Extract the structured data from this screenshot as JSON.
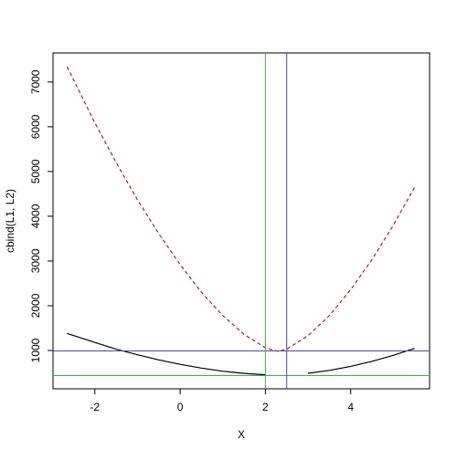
{
  "chart_data": {
    "type": "line",
    "xlabel": "X",
    "ylabel": "cbind(L1, L2)",
    "x": [
      -2.65,
      -2,
      -1.5,
      -1,
      -0.5,
      0,
      0.5,
      1,
      1.5,
      2,
      2.3,
      2.5,
      3,
      3.5,
      4,
      4.5,
      5,
      5.5
    ],
    "series": [
      {
        "color": "#000000",
        "dash": false,
        "values": [
          1380,
          1180,
          1030,
          905,
          790,
          690,
          606,
          537,
          487,
          457,
          null,
          null,
          490,
          555,
          644,
          757,
          891,
          1047
        ]
      },
      {
        "color": "#b22222",
        "dash": true,
        "values": [
          7340,
          6090,
          5200,
          4370,
          3610,
          2920,
          2300,
          1780,
          1360,
          1060,
          980,
          1030,
          1330,
          1780,
          2360,
          3030,
          3800,
          4650
        ]
      }
    ],
    "hlines": [
      {
        "value": 990,
        "color": "#4b4ba8"
      },
      {
        "value": 440,
        "color": "#3cb043"
      }
    ],
    "vlines": [
      {
        "value": 2,
        "color": "#3cb043"
      },
      {
        "value": 2.5,
        "color": "#4b4ba8"
      }
    ],
    "xlim": [
      -2.98,
      5.85
    ],
    "ylim": [
      143,
      7650
    ],
    "xticks": [
      -2,
      0,
      2,
      4
    ],
    "yticks": [
      1000,
      2000,
      3000,
      4000,
      5000,
      6000,
      7000
    ]
  }
}
